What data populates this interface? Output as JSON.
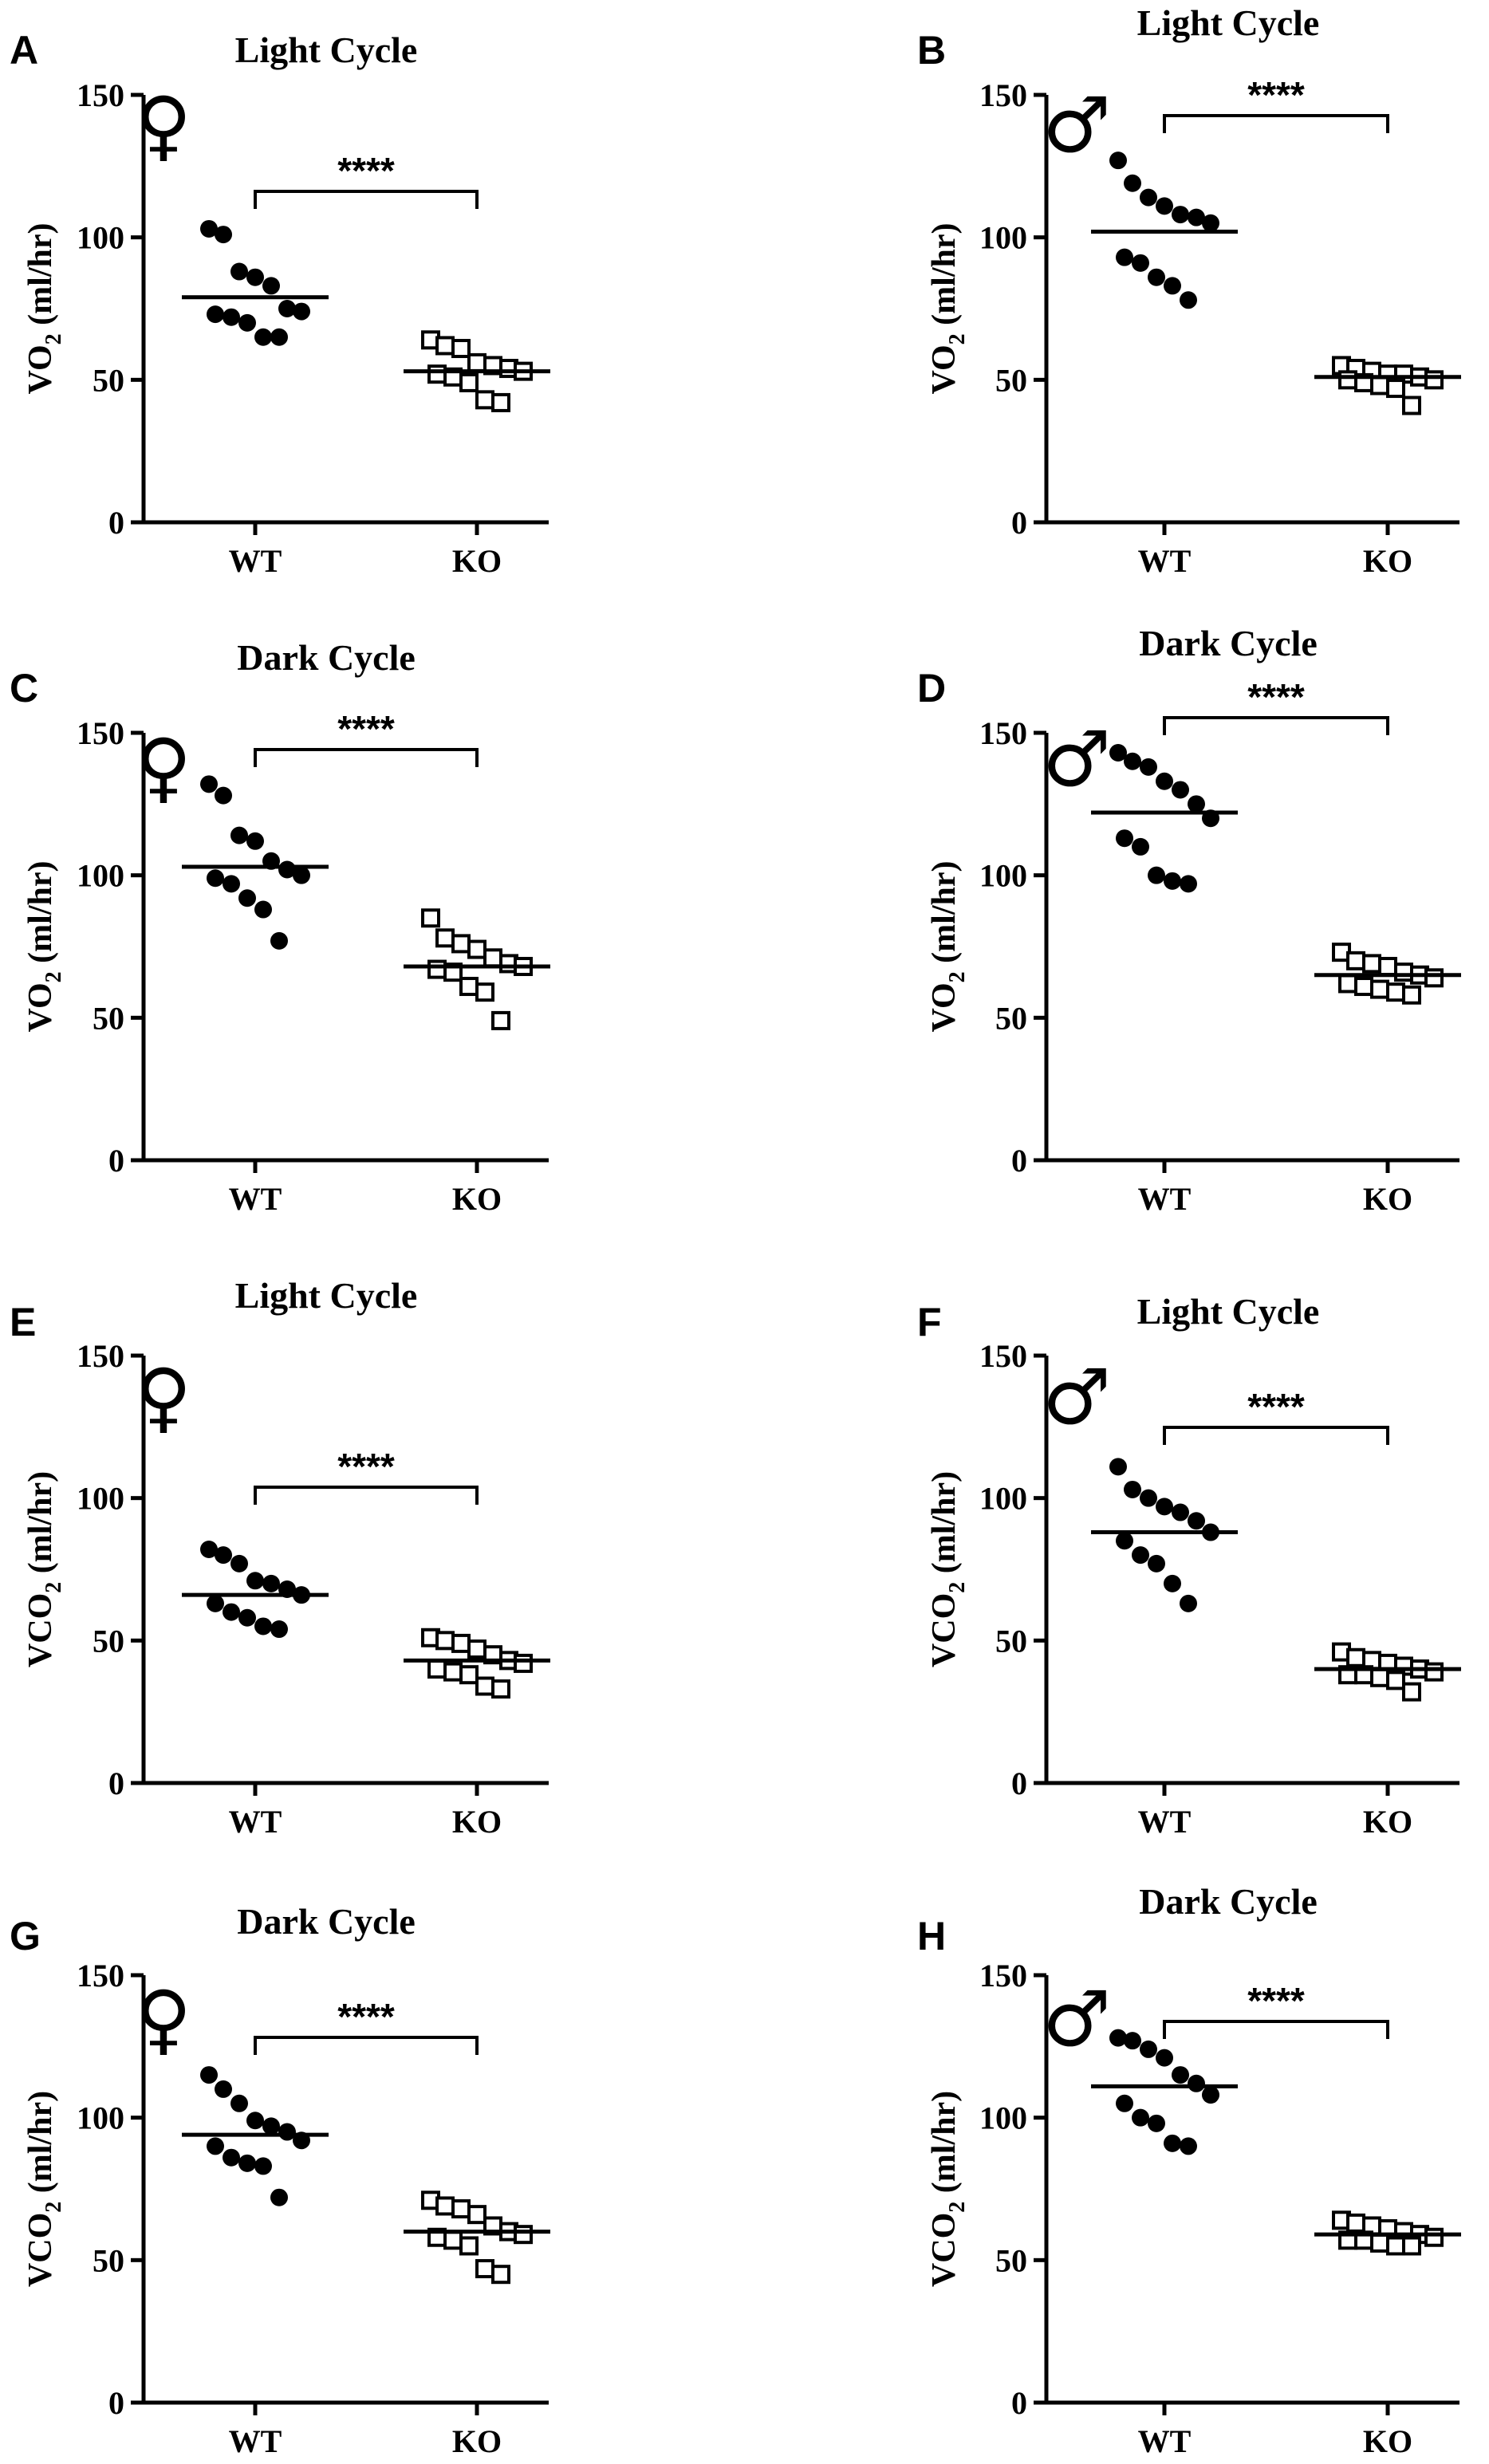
{
  "chart_data": [
    {
      "panel": "A",
      "type": "scatter",
      "title": "Light Cycle",
      "sex_symbol": "♀",
      "ylabel": [
        "VO",
        "2",
        " (ml/hr)"
      ],
      "ylim": [
        0,
        150
      ],
      "yticks": [
        0,
        50,
        100,
        150
      ],
      "categories": [
        "WT",
        "KO"
      ],
      "significance": "****",
      "series": [
        {
          "name": "WT",
          "marker": "filled-circle",
          "mean": 79,
          "values": [
            103,
            101,
            88,
            86,
            83,
            75,
            74,
            73,
            72,
            70,
            65,
            65
          ]
        },
        {
          "name": "KO",
          "marker": "open-square",
          "mean": 53,
          "values": [
            64,
            62,
            61,
            56,
            55,
            54,
            53,
            52,
            51,
            49,
            43,
            42
          ]
        }
      ]
    },
    {
      "panel": "B",
      "type": "scatter",
      "title": "Light Cycle",
      "sex_symbol": "♂",
      "ylabel": [
        "VO",
        "2",
        " (ml/hr)"
      ],
      "ylim": [
        0,
        150
      ],
      "yticks": [
        0,
        50,
        100,
        150
      ],
      "categories": [
        "WT",
        "KO"
      ],
      "significance": "****",
      "series": [
        {
          "name": "WT",
          "marker": "filled-circle",
          "mean": 102,
          "values": [
            127,
            119,
            114,
            111,
            108,
            107,
            105,
            93,
            91,
            86,
            83,
            78
          ]
        },
        {
          "name": "KO",
          "marker": "open-square",
          "mean": 51,
          "values": [
            55,
            54,
            53,
            52,
            52,
            51,
            50,
            50,
            49,
            48,
            47,
            41
          ]
        }
      ]
    },
    {
      "panel": "C",
      "type": "scatter",
      "title": "Dark Cycle",
      "sex_symbol": "♀",
      "ylabel": [
        "VO",
        "2",
        " (ml/hr)"
      ],
      "ylim": [
        0,
        150
      ],
      "yticks": [
        0,
        50,
        100,
        150
      ],
      "categories": [
        "WT",
        "KO"
      ],
      "significance": "****",
      "series": [
        {
          "name": "WT",
          "marker": "filled-circle",
          "mean": 103,
          "values": [
            132,
            128,
            114,
            112,
            105,
            102,
            100,
            99,
            97,
            92,
            88,
            77
          ]
        },
        {
          "name": "KO",
          "marker": "open-square",
          "mean": 68,
          "values": [
            85,
            78,
            76,
            74,
            71,
            69,
            68,
            67,
            66,
            61,
            59,
            49
          ]
        }
      ]
    },
    {
      "panel": "D",
      "type": "scatter",
      "title": "Dark Cycle",
      "sex_symbol": "♂",
      "ylabel": [
        "VO",
        "2",
        " (ml/hr)"
      ],
      "ylim": [
        0,
        150
      ],
      "yticks": [
        0,
        50,
        100,
        150
      ],
      "categories": [
        "WT",
        "KO"
      ],
      "significance": "****",
      "series": [
        {
          "name": "WT",
          "marker": "filled-circle",
          "mean": 122,
          "values": [
            143,
            140,
            138,
            133,
            130,
            125,
            120,
            113,
            110,
            100,
            98,
            97
          ]
        },
        {
          "name": "KO",
          "marker": "open-square",
          "mean": 65,
          "values": [
            73,
            70,
            69,
            68,
            66,
            65,
            64,
            62,
            61,
            60,
            59,
            58
          ]
        }
      ]
    },
    {
      "panel": "E",
      "type": "scatter",
      "title": "Light Cycle",
      "sex_symbol": "♀",
      "ylabel": [
        "VCO",
        "2",
        " (ml/hr)"
      ],
      "ylim": [
        0,
        150
      ],
      "yticks": [
        0,
        50,
        100,
        150
      ],
      "categories": [
        "WT",
        "KO"
      ],
      "significance": "****",
      "series": [
        {
          "name": "WT",
          "marker": "filled-circle",
          "mean": 66,
          "values": [
            82,
            80,
            77,
            71,
            70,
            68,
            66,
            63,
            60,
            58,
            55,
            54
          ]
        },
        {
          "name": "KO",
          "marker": "open-square",
          "mean": 43,
          "values": [
            51,
            50,
            49,
            47,
            45,
            43,
            42,
            40,
            39,
            38,
            34,
            33
          ]
        }
      ]
    },
    {
      "panel": "F",
      "type": "scatter",
      "title": "Light Cycle",
      "sex_symbol": "♂",
      "ylabel": [
        "VCO",
        "2",
        " (ml/hr)"
      ],
      "ylim": [
        0,
        150
      ],
      "yticks": [
        0,
        50,
        100,
        150
      ],
      "categories": [
        "WT",
        "KO"
      ],
      "significance": "****",
      "series": [
        {
          "name": "WT",
          "marker": "filled-circle",
          "mean": 88,
          "values": [
            111,
            103,
            100,
            97,
            95,
            92,
            88,
            85,
            80,
            77,
            70,
            63
          ]
        },
        {
          "name": "KO",
          "marker": "open-square",
          "mean": 40,
          "values": [
            46,
            44,
            43,
            42,
            41,
            40,
            39,
            38,
            38,
            37,
            36,
            32
          ]
        }
      ]
    },
    {
      "panel": "G",
      "type": "scatter",
      "title": "Dark Cycle",
      "sex_symbol": "♀",
      "ylabel": [
        "VCO",
        "2",
        " (ml/hr)"
      ],
      "ylim": [
        0,
        150
      ],
      "yticks": [
        0,
        50,
        100,
        150
      ],
      "categories": [
        "WT",
        "KO"
      ],
      "significance": "****",
      "series": [
        {
          "name": "WT",
          "marker": "filled-circle",
          "mean": 94,
          "values": [
            115,
            110,
            105,
            99,
            97,
            95,
            92,
            90,
            86,
            84,
            83,
            72
          ]
        },
        {
          "name": "KO",
          "marker": "open-square",
          "mean": 60,
          "values": [
            71,
            69,
            68,
            66,
            62,
            60,
            59,
            58,
            57,
            55,
            47,
            45
          ]
        }
      ]
    },
    {
      "panel": "H",
      "type": "scatter",
      "title": "Dark Cycle",
      "sex_symbol": "♂",
      "ylabel": [
        "VCO",
        "2",
        " (ml/hr)"
      ],
      "ylim": [
        0,
        150
      ],
      "yticks": [
        0,
        50,
        100,
        150
      ],
      "categories": [
        "WT",
        "KO"
      ],
      "significance": "****",
      "series": [
        {
          "name": "WT",
          "marker": "filled-circle",
          "mean": 111,
          "values": [
            128,
            127,
            124,
            121,
            115,
            112,
            108,
            105,
            100,
            98,
            91,
            90
          ]
        },
        {
          "name": "KO",
          "marker": "open-square",
          "mean": 59,
          "values": [
            64,
            63,
            62,
            61,
            60,
            59,
            58,
            57,
            57,
            56,
            55,
            55
          ]
        }
      ]
    }
  ]
}
